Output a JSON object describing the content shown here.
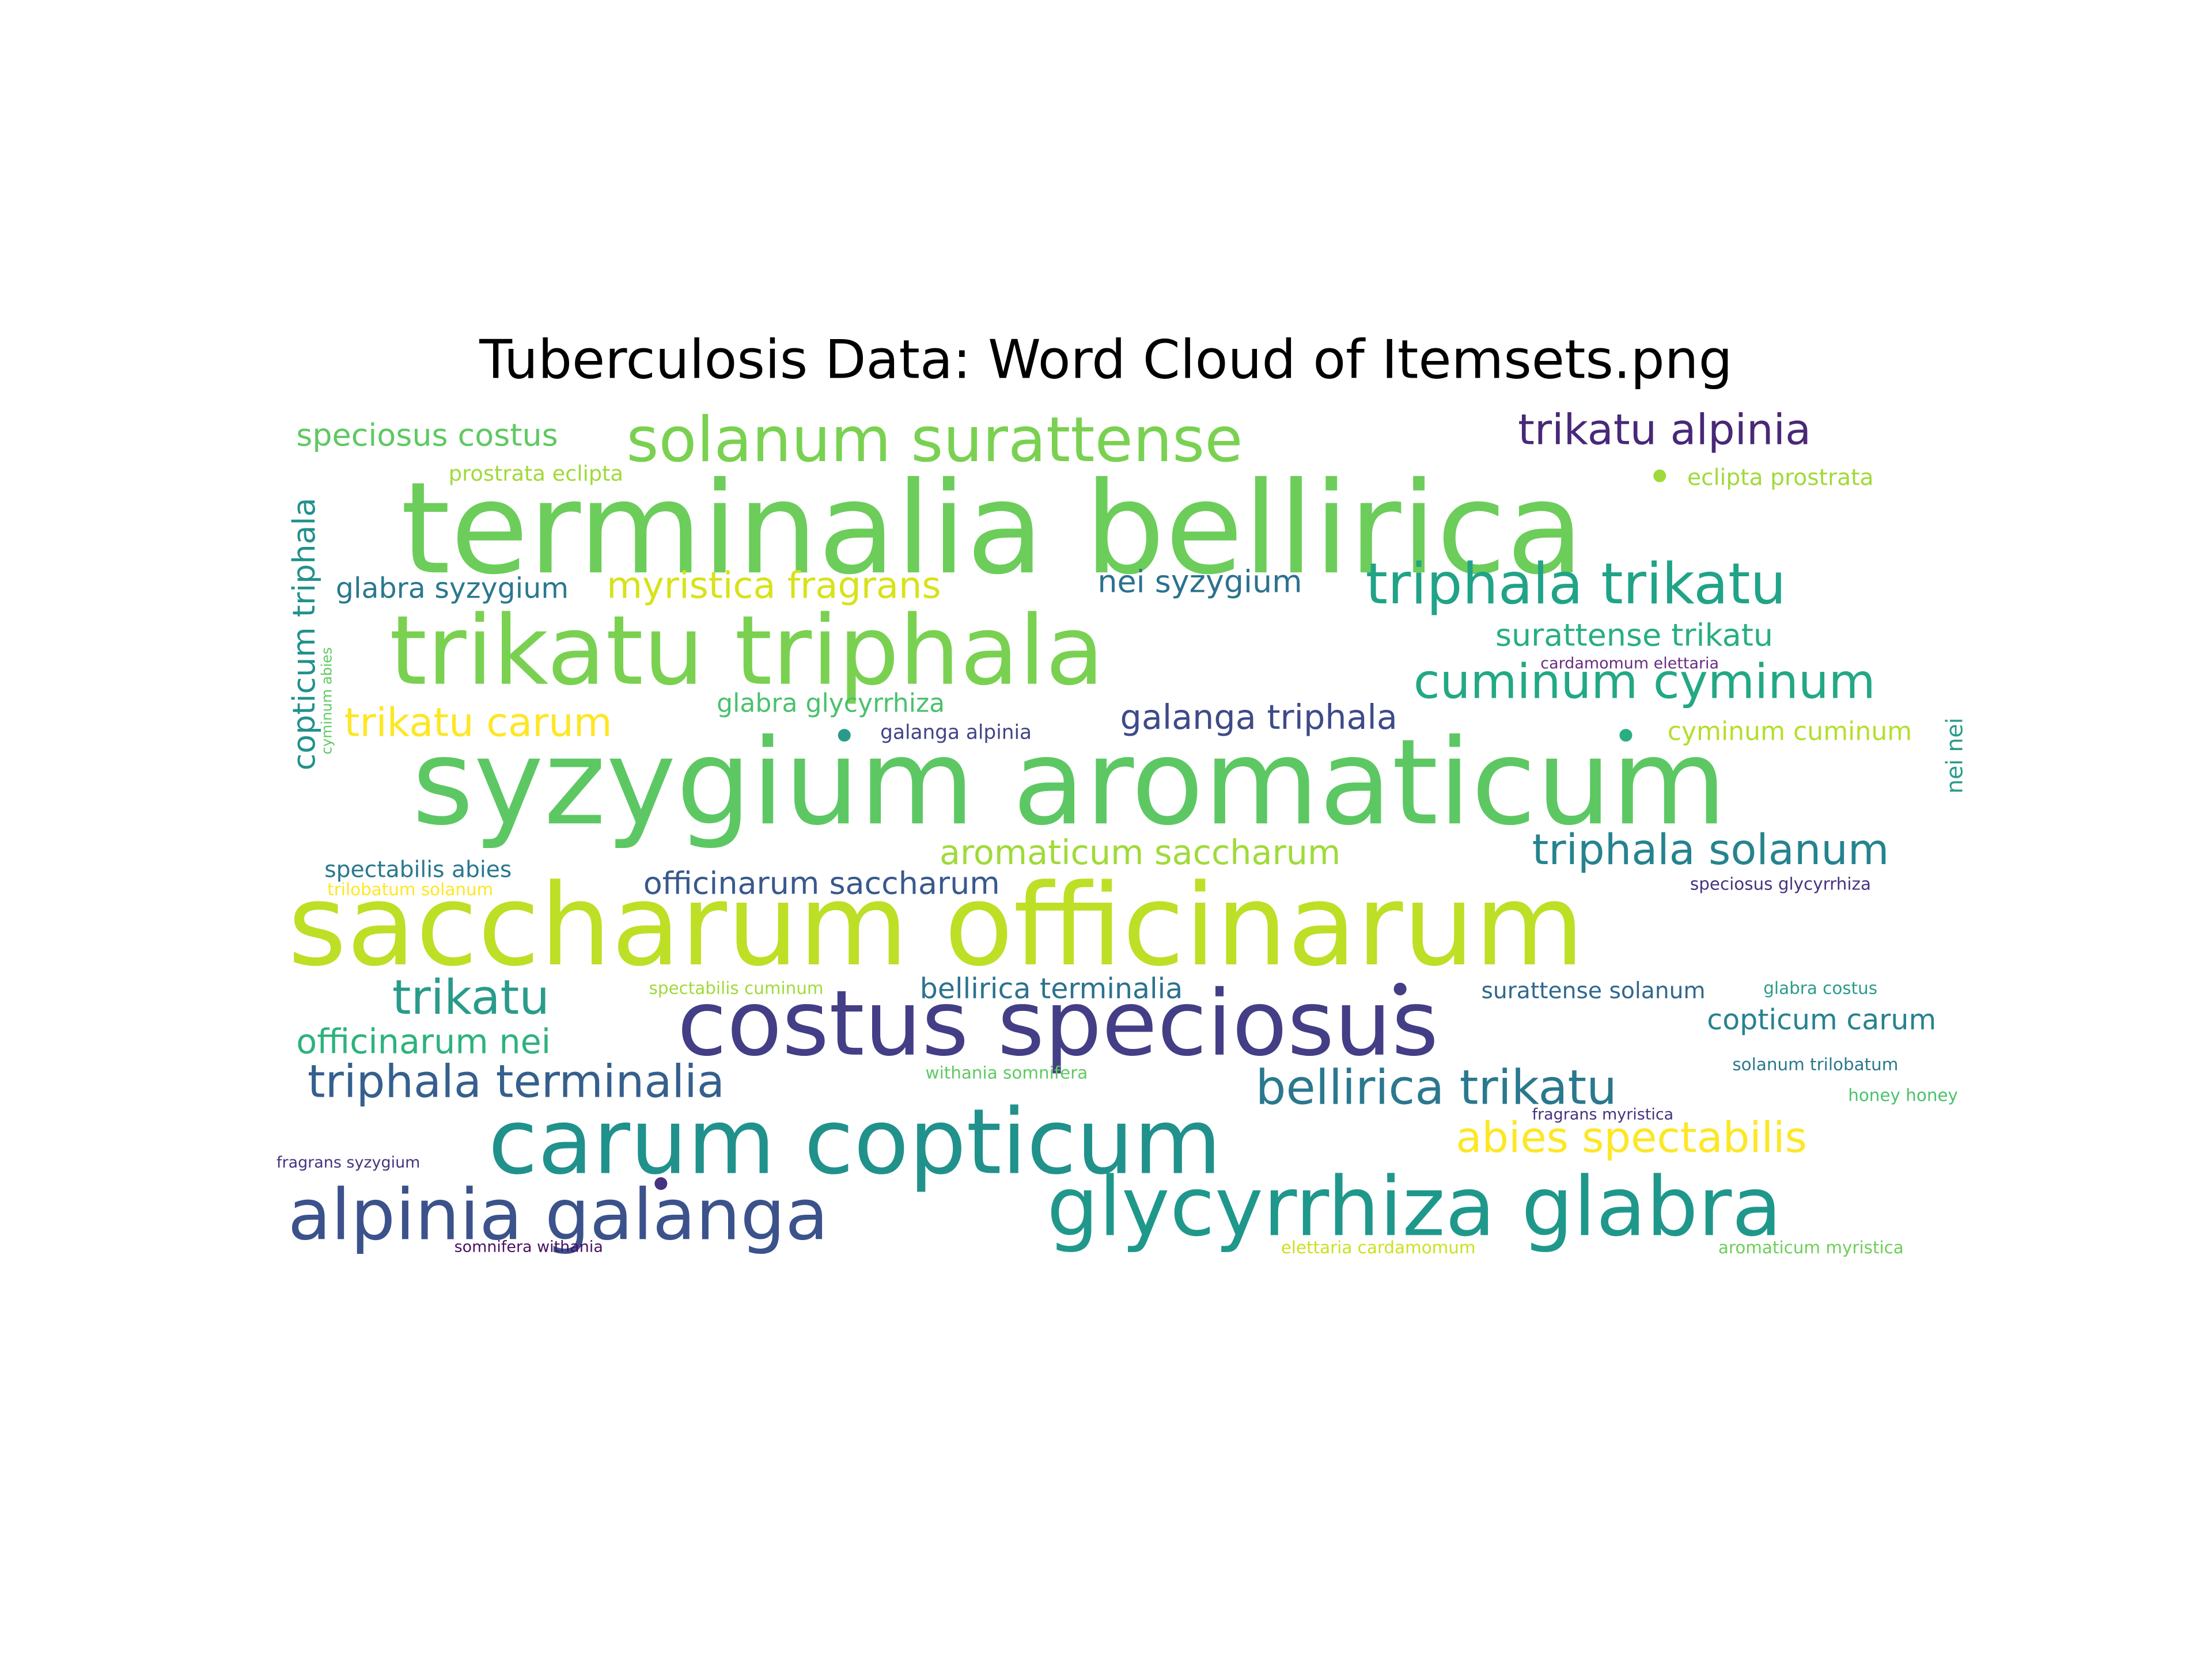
{
  "title": "Tuberculosis Data: Word Cloud of Itemsets.png",
  "words": [
    {
      "text": "terminalia bellirica",
      "color": "#6ccd5a"
    },
    {
      "text": "syzygium aromaticum",
      "color": "#5dc863"
    },
    {
      "text": "saccharum officinarum",
      "color": "#bddf26"
    },
    {
      "text": "trikatu triphala",
      "color": "#7ad151"
    },
    {
      "text": "costus speciosus",
      "color": "#433e85"
    },
    {
      "text": "carum copticum",
      "color": "#21918c"
    },
    {
      "text": "glycyrrhiza glabra",
      "color": "#1f988b"
    },
    {
      "text": "alpinia galanga",
      "color": "#3b528b"
    },
    {
      "text": "solanum surattense",
      "color": "#7ad151"
    },
    {
      "text": "triphala trikatu",
      "color": "#20a386"
    },
    {
      "text": "cuminum cyminum",
      "color": "#22a884"
    },
    {
      "text": "bellirica trikatu",
      "color": "#2a788e"
    },
    {
      "text": "triphala terminalia",
      "color": "#355f8d"
    },
    {
      "text": "triphala solanum",
      "color": "#25838e"
    },
    {
      "text": "abies spectabilis",
      "color": "#fde725"
    },
    {
      "text": "trikatu alpinia",
      "color": "#482878"
    },
    {
      "text": "aromaticum saccharum",
      "color": "#a0da39"
    },
    {
      "text": "myristica fragrans",
      "color": "#d8e219"
    },
    {
      "text": "trikatu carum",
      "color": "#fde725"
    },
    {
      "text": "trikatu",
      "color": "#2a9b8a"
    },
    {
      "text": "officinarum nei",
      "color": "#2db27d"
    },
    {
      "text": "galanga triphala",
      "color": "#3e4a89"
    },
    {
      "text": "speciosus costus",
      "color": "#5ec962"
    },
    {
      "text": "nei syzygium",
      "color": "#2c728e"
    },
    {
      "text": "surattense trikatu",
      "color": "#28ae80"
    },
    {
      "text": "officinarum saccharum",
      "color": "#38598c"
    },
    {
      "text": "copticum triphala",
      "color": "#21918c"
    },
    {
      "text": "bellirica terminalia",
      "color": "#2c728e"
    },
    {
      "text": "glabra syzygium",
      "color": "#2a788e"
    },
    {
      "text": "copticum carum",
      "color": "#26828e"
    },
    {
      "text": "glabra glycyrrhiza",
      "color": "#4ac16d"
    },
    {
      "text": "cyminum cuminum",
      "color": "#b5de2b"
    },
    {
      "text": "surattense solanum",
      "color": "#31688e"
    },
    {
      "text": "spectabilis abies",
      "color": "#2a788e"
    },
    {
      "text": "eclipta prostrata",
      "color": "#a0da39"
    },
    {
      "text": "prostrata eclipta",
      "color": "#a0da39"
    },
    {
      "text": "nei nei",
      "color": "#2a9b8a"
    },
    {
      "text": "galanga alpinia",
      "color": "#414487"
    },
    {
      "text": "speciosus glycyrrhiza",
      "color": "#46337f"
    },
    {
      "text": "withania somnifera",
      "color": "#5ec962"
    },
    {
      "text": "glabra costus",
      "color": "#2a9b8a"
    },
    {
      "text": "solanum trilobatum",
      "color": "#2a788e"
    },
    {
      "text": "honey honey",
      "color": "#4ac16d"
    },
    {
      "text": "spectabilis cuminum",
      "color": "#a0da39"
    },
    {
      "text": "trilobatum solanum",
      "color": "#fde725"
    },
    {
      "text": "cardamomum elettaria",
      "color": "#6a2c80"
    },
    {
      "text": "fragrans myristica",
      "color": "#46337f"
    },
    {
      "text": "fragrans syzygium",
      "color": "#46337f"
    },
    {
      "text": "elettaria cardamomum",
      "color": "#cae11f"
    },
    {
      "text": "aromaticum myristica",
      "color": "#6ece58"
    },
    {
      "text": "somnifera withania",
      "color": "#471164"
    },
    {
      "text": "cyminum abies",
      "color": "#5ec962"
    }
  ],
  "dots": [
    {
      "color": "#a0da39"
    },
    {
      "color": "#2a9b8a"
    },
    {
      "color": "#28ae80"
    },
    {
      "color": "#433e85"
    },
    {
      "color": "#46337f"
    }
  ]
}
